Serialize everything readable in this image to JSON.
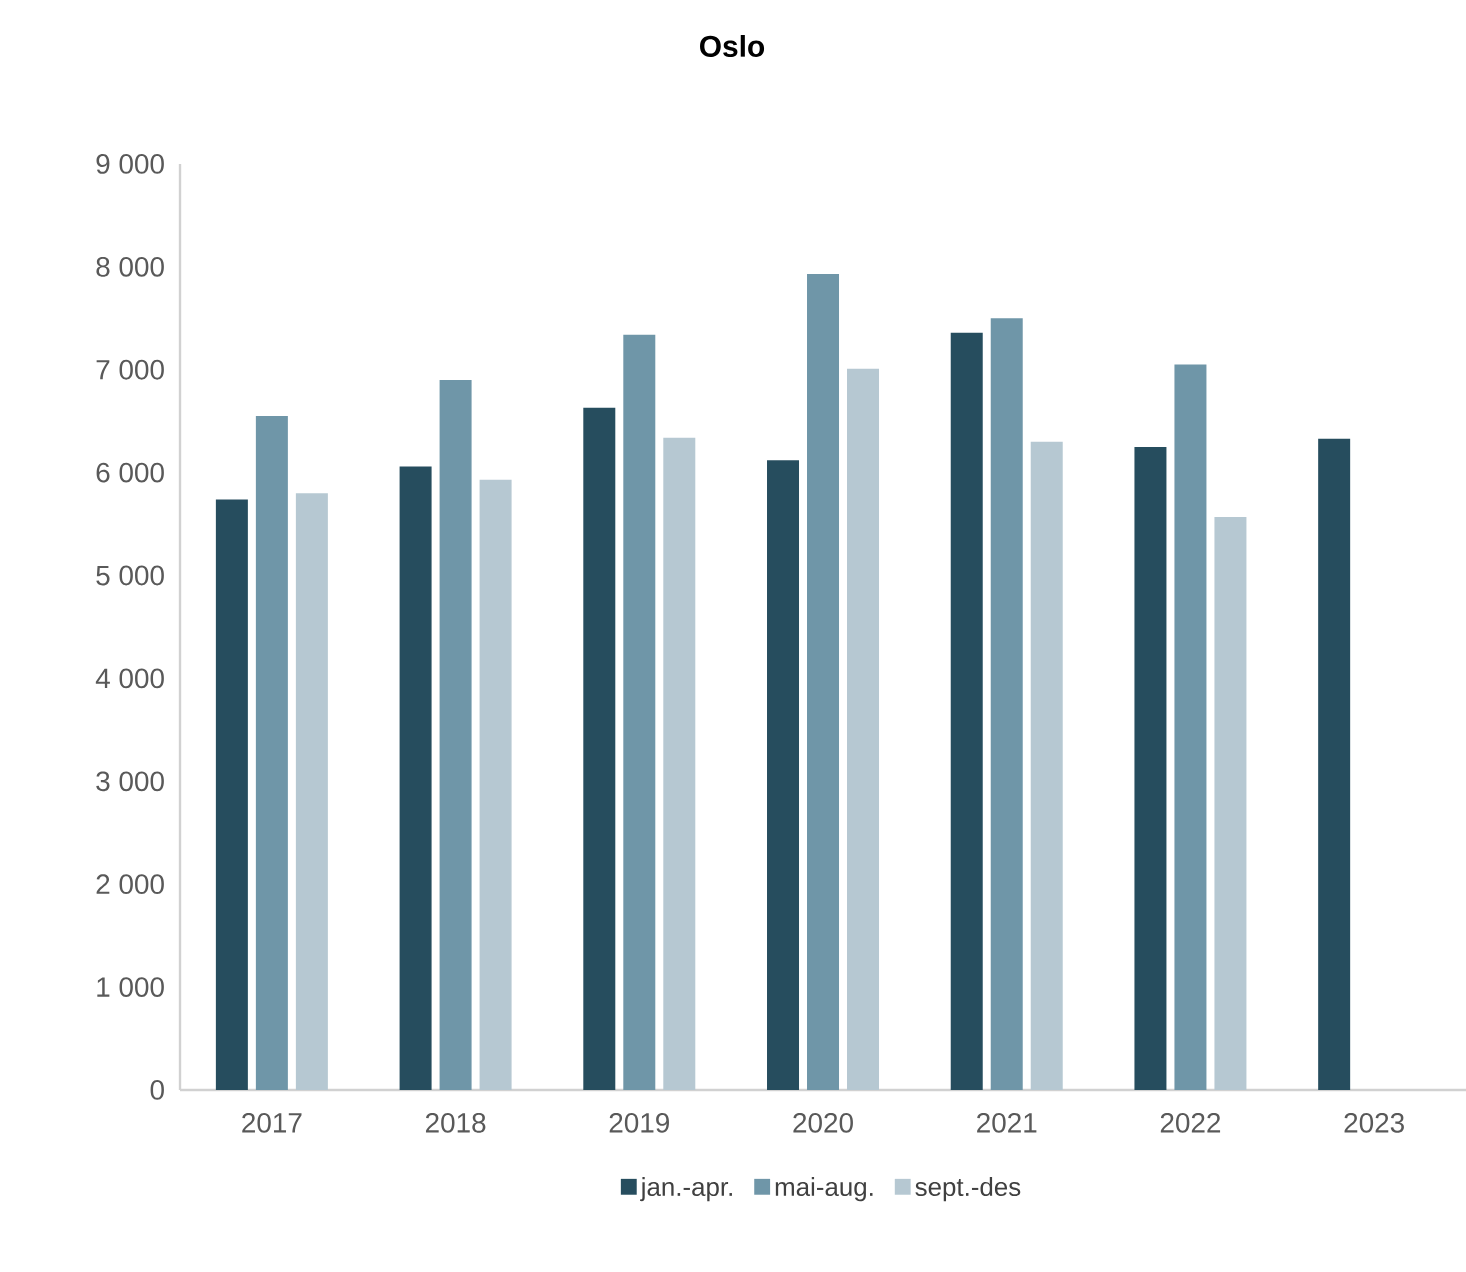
{
  "chart_data": {
    "type": "bar",
    "title": "Oslo",
    "categories": [
      "2017",
      "2018",
      "2019",
      "2020",
      "2021",
      "2022",
      "2023"
    ],
    "series": [
      {
        "name": "jan.-apr.",
        "color": "#264d5e",
        "values": [
          5740,
          6060,
          6630,
          6120,
          7360,
          6250,
          6330
        ]
      },
      {
        "name": "mai-aug.",
        "color": "#6f96a8",
        "values": [
          6550,
          6900,
          7340,
          7930,
          7500,
          7050,
          null
        ]
      },
      {
        "name": "sept.-des",
        "color": "#b6c8d2",
        "values": [
          5800,
          5930,
          6340,
          7010,
          6300,
          5570,
          null
        ]
      }
    ],
    "ylim": [
      0,
      9000
    ],
    "yticks": [
      0,
      {
        "value": 1000,
        "label": "1 000"
      },
      {
        "value": 2000,
        "label": "2 000"
      },
      {
        "value": 3000,
        "label": "3 000"
      },
      {
        "value": 4000,
        "label": "4 000"
      },
      {
        "value": 5000,
        "label": "5 000"
      },
      {
        "value": 6000,
        "label": "6 000"
      },
      {
        "value": 7000,
        "label": "7 000"
      },
      {
        "value": 8000,
        "label": "8 000"
      },
      {
        "value": 9000,
        "label": "9 000"
      }
    ],
    "grid": false,
    "legend": "bottom"
  }
}
